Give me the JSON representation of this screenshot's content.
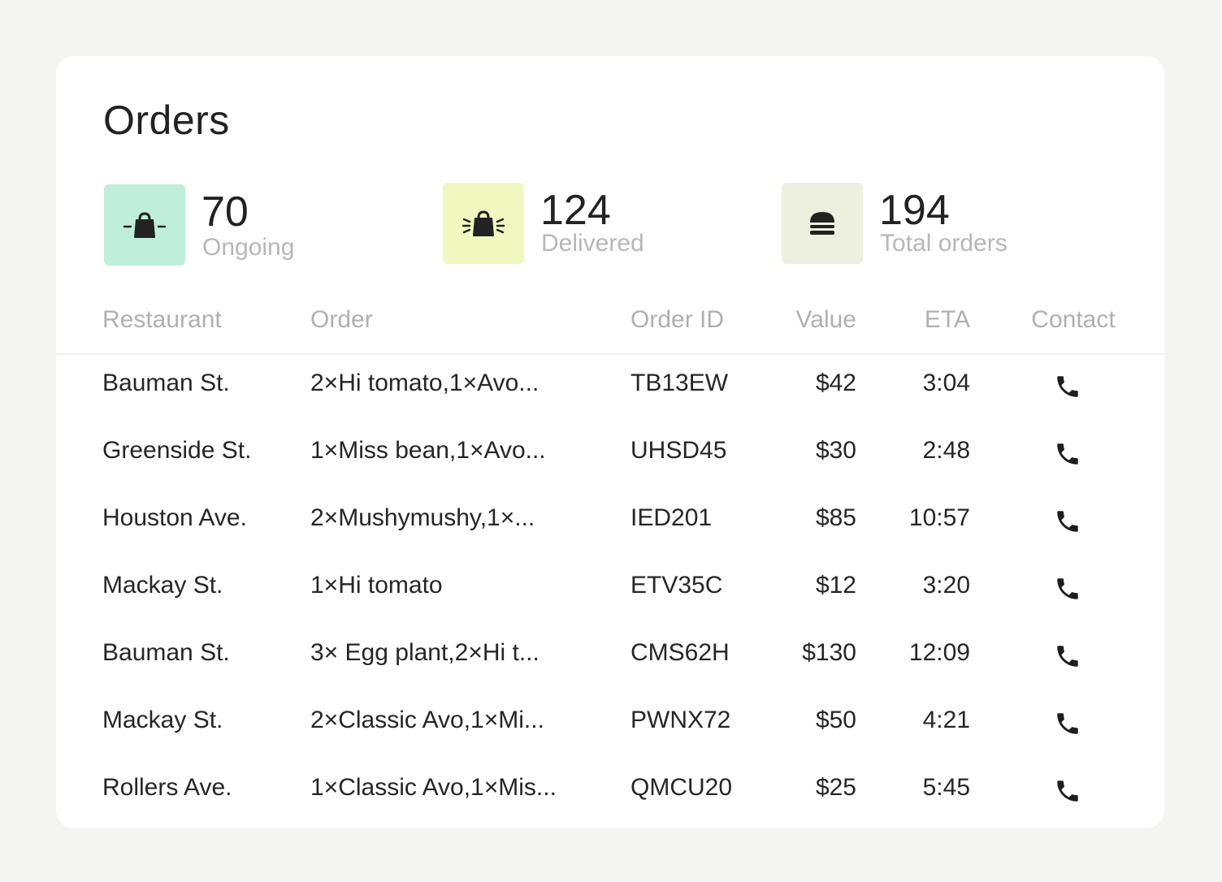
{
  "title": "Orders",
  "stats": [
    {
      "value": "70",
      "label": "Ongoing",
      "icon": "bag-icon",
      "color": "#bfeedb"
    },
    {
      "value": "124",
      "label": "Delivered",
      "icon": "bag-delivered-icon",
      "color": "#f0f8bf"
    },
    {
      "value": "194",
      "label": "Total orders",
      "icon": "burger-icon",
      "color": "#eef0df"
    }
  ],
  "table": {
    "headers": {
      "restaurant": "Restaurant",
      "order": "Order",
      "order_id": "Order ID",
      "value": "Value",
      "eta": "ETA",
      "contact": "Contact"
    },
    "rows": [
      {
        "restaurant": "Bauman St.",
        "order": "2×Hi tomato,1×Avo...",
        "order_id": "TB13EW",
        "value": "$42",
        "eta": "3:04"
      },
      {
        "restaurant": "Greenside St.",
        "order": "1×Miss bean,1×Avo...",
        "order_id": "UHSD45",
        "value": "$30",
        "eta": "2:48"
      },
      {
        "restaurant": "Houston Ave.",
        "order": "2×Mushymushy,1×...",
        "order_id": "IED201",
        "value": "$85",
        "eta": "10:57"
      },
      {
        "restaurant": "Mackay St.",
        "order": "1×Hi tomato",
        "order_id": "ETV35C",
        "value": "$12",
        "eta": "3:20"
      },
      {
        "restaurant": "Bauman St.",
        "order": "3× Egg plant,2×Hi t...",
        "order_id": "CMS62H",
        "value": "$130",
        "eta": "12:09"
      },
      {
        "restaurant": "Mackay St.",
        "order": "2×Classic Avo,1×Mi...",
        "order_id": "PWNX72",
        "value": "$50",
        "eta": "4:21"
      },
      {
        "restaurant": "Rollers Ave.",
        "order": "1×Classic Avo,1×Mis...",
        "order_id": "QMCU20",
        "value": "$25",
        "eta": "5:45"
      }
    ]
  }
}
